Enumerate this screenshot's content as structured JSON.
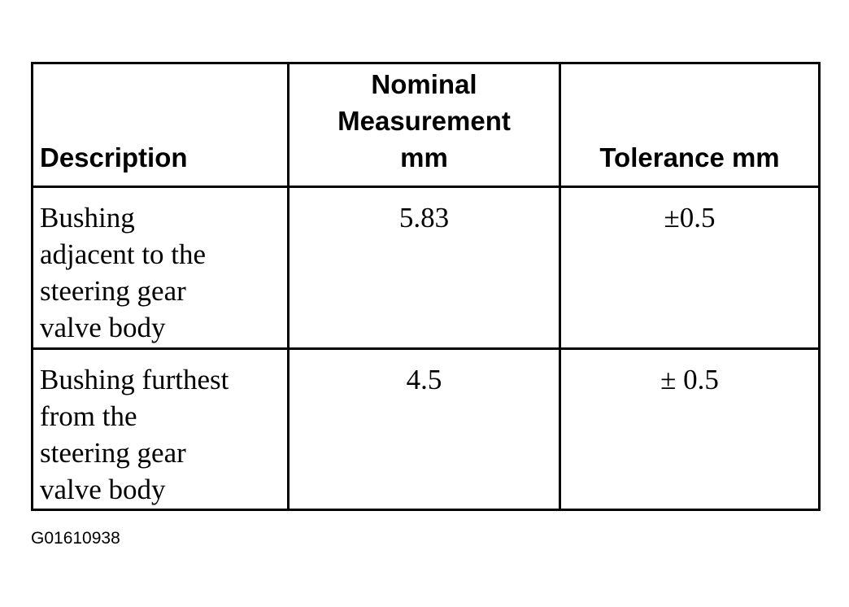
{
  "table": {
    "header": [
      {
        "lines": [
          "Description"
        ]
      },
      {
        "lines": [
          "Nominal",
          "Measurement",
          "mm"
        ]
      },
      {
        "lines": [
          "Tolerance mm"
        ]
      }
    ],
    "rows": [
      [
        {
          "lines": [
            "Bushing",
            "adjacent to the",
            "steering gear",
            "valve body"
          ]
        },
        {
          "lines": [
            "5.83"
          ]
        },
        {
          "lines": [
            "±0.5"
          ]
        }
      ],
      [
        {
          "lines": [
            "Bushing furthest",
            "from the",
            "steering gear",
            "valve body"
          ]
        },
        {
          "lines": [
            "4.5"
          ]
        },
        {
          "lines": [
            "± 0.5"
          ]
        }
      ]
    ]
  },
  "caption": "G01610938"
}
